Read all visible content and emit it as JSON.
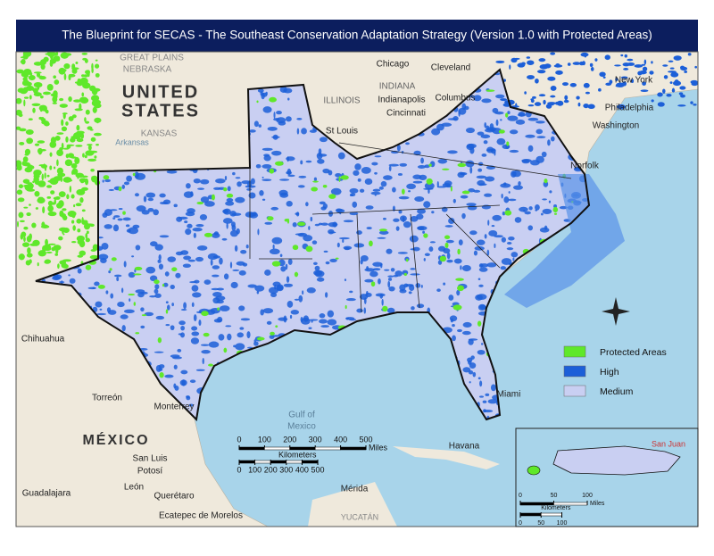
{
  "title": "The Blueprint for SECAS - The Southeast Conservation Adaptation Strategy (Version 1.0 with Protected Areas)",
  "legend": [
    {
      "label": "Protected Areas",
      "color": "#5fe82a"
    },
    {
      "label": "High",
      "color": "#1c5fd8"
    },
    {
      "label": "Medium",
      "color": "#c9cff2"
    }
  ],
  "scale_bar": {
    "miles": {
      "unit": "Miles",
      "ticks": [
        0,
        100,
        200,
        300,
        400,
        500
      ]
    },
    "kilometers": {
      "unit": "Kilometers",
      "ticks": [
        0,
        100,
        200,
        300,
        400,
        500
      ]
    }
  },
  "inset": {
    "place": "San Juan",
    "scale_bar": {
      "miles": {
        "unit": "Miles",
        "ticks": [
          0,
          50,
          100
        ]
      },
      "kilometers": {
        "unit": "Kilometers",
        "ticks": [
          0,
          50,
          100
        ]
      }
    }
  },
  "places": [
    "UNITED",
    "STATES",
    "MÉXICO",
    "Gulf of",
    "Mexico",
    "GREAT PLAINS",
    "NEBRASKA",
    "KANSAS",
    "Arkansas",
    "Chicago",
    "Cleveland",
    "INDIANA",
    "Indianapolis",
    "Columbus",
    "Cincinnati",
    "ILLINOIS",
    "St Louis",
    "New York",
    "Philadelphia",
    "Washington",
    "Norfolk",
    "Chihuahua",
    "Torreón",
    "Monterrey",
    "San Luis",
    "Potosí",
    "Guadalajara",
    "León",
    "Querétaro",
    "Ecatepec de Morelos",
    "Mérida",
    "YUCATÁN",
    "Havana",
    "Miami"
  ]
}
